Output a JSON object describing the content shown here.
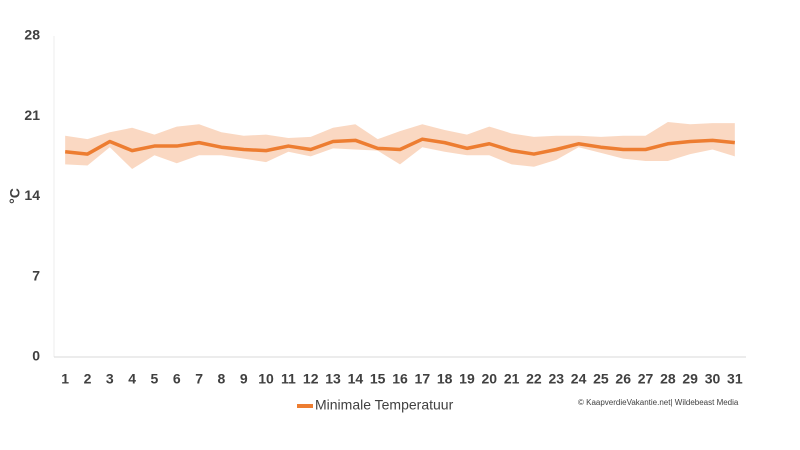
{
  "chart_data": {
    "type": "line",
    "y_label": "°C",
    "categories": [
      "1",
      "2",
      "3",
      "4",
      "5",
      "6",
      "7",
      "8",
      "9",
      "10",
      "11",
      "12",
      "13",
      "14",
      "15",
      "16",
      "17",
      "18",
      "19",
      "20",
      "21",
      "22",
      "23",
      "24",
      "25",
      "26",
      "27",
      "28",
      "29",
      "30",
      "31"
    ],
    "series": [
      {
        "name": "Minimale Temperatuur",
        "color": "#ed7d31",
        "values": [
          17.9,
          17.7,
          18.8,
          18.0,
          18.4,
          18.4,
          18.7,
          18.3,
          18.1,
          18.0,
          18.4,
          18.1,
          18.8,
          18.9,
          18.2,
          18.1,
          19.0,
          18.7,
          18.2,
          18.6,
          18.0,
          17.7,
          18.1,
          18.6,
          18.3,
          18.1,
          18.1,
          18.6,
          18.8,
          18.9,
          18.7
        ]
      }
    ],
    "band": {
      "color": "#f8cbad",
      "upper": [
        19.3,
        19.0,
        19.6,
        20.0,
        19.4,
        20.1,
        20.3,
        19.6,
        19.3,
        19.4,
        19.1,
        19.2,
        20.0,
        20.3,
        19.0,
        19.7,
        20.3,
        19.8,
        19.4,
        20.1,
        19.5,
        19.2,
        19.3,
        19.3,
        19.2,
        19.3,
        19.3,
        20.5,
        20.3,
        20.4,
        20.4
      ],
      "lower": [
        16.8,
        16.7,
        18.3,
        16.4,
        17.6,
        16.9,
        17.6,
        17.6,
        17.3,
        17.0,
        17.9,
        17.5,
        18.2,
        18.1,
        18.0,
        16.8,
        18.3,
        17.9,
        17.6,
        17.6,
        16.8,
        16.6,
        17.2,
        18.3,
        17.8,
        17.3,
        17.1,
        17.1,
        17.7,
        18.1,
        17.5
      ]
    },
    "ylim": [
      0,
      28
    ],
    "yticks": [
      0,
      7,
      14,
      21,
      28
    ],
    "grid": false,
    "legend": "bottom",
    "source": "© KaapverdieVakantie.net| Wildebeast Media"
  }
}
